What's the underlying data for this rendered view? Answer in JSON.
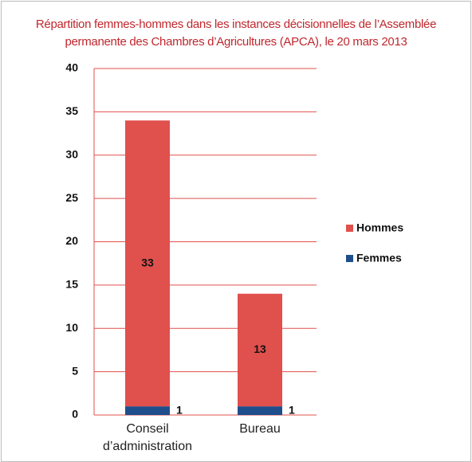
{
  "chart_data": {
    "type": "stacked_bar",
    "title": "Répartition femmes-hommes dans les instances décisionnelles de l’Assemblée permanente des Chambres d’Agricultures (APCA), le 20 mars 2013",
    "categories": [
      "Conseil d’administration",
      "Bureau"
    ],
    "series": [
      {
        "name": "Femmes",
        "color": "#1f4e8c",
        "values": [
          1,
          1
        ]
      },
      {
        "name": "Hommes",
        "color": "#e0504d",
        "values": [
          33,
          13
        ]
      }
    ],
    "ylim": [
      0,
      40
    ],
    "yticks": [
      0,
      5,
      10,
      15,
      20,
      25,
      30,
      35,
      40
    ],
    "grid": true,
    "legend": "right"
  }
}
